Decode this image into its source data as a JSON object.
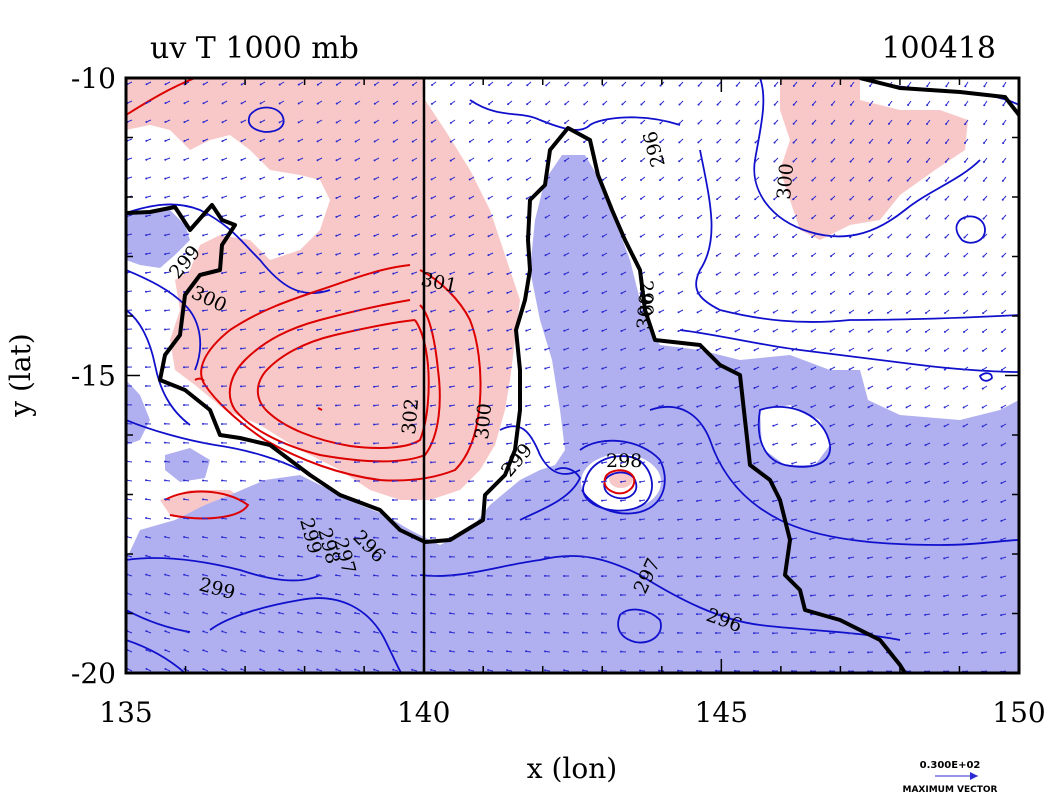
{
  "chart_data": {
    "type": "contour",
    "title_left": "uv T 1000 mb",
    "title_right": "100418",
    "xlabel": "x (lon)",
    "ylabel": "y (lat)",
    "xlim": [
      135,
      150
    ],
    "ylim": [
      -20,
      -10
    ],
    "x_ticks": [
      135,
      140,
      145,
      150
    ],
    "y_ticks": [
      -10,
      -15,
      -20
    ],
    "contour_labels": [
      "301",
      "300",
      "299",
      "300",
      "302",
      "300",
      "299",
      "298",
      "297",
      "296",
      "299",
      "299",
      "298",
      "297",
      "296",
      "296",
      "300",
      "299"
    ],
    "vector_legend": {
      "value": "0.300E+02",
      "label": "MAXIMUM VECTOR"
    },
    "colors": {
      "warm_fill": "#f8c8c8",
      "cool_fill": "#b0b0f0",
      "warm_line": "#dd0000",
      "cool_line": "#1010cc",
      "vector": "#2a2ad0",
      "coast": "#000000"
    }
  }
}
